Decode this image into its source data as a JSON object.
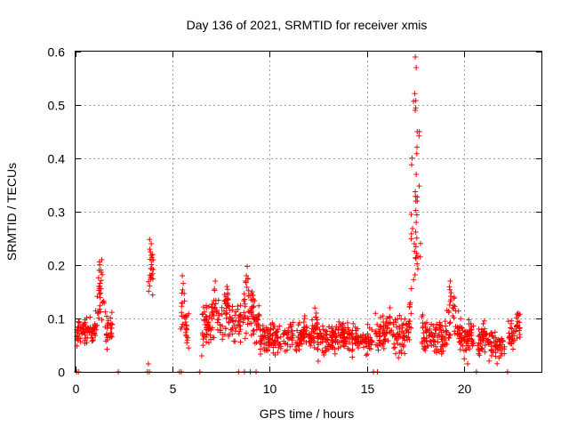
{
  "chart_data": {
    "type": "scatter",
    "title": "Day 136 of 2021, SRMTID for receiver xmis",
    "xlabel": "GPS time / hours",
    "ylabel": "SRMTID / TECUs",
    "xlim": [
      0,
      24
    ],
    "ylim": [
      0,
      0.6
    ],
    "xticks": [
      0,
      5,
      10,
      15,
      20
    ],
    "yticks": [
      0,
      0.1,
      0.2,
      0.3,
      0.4,
      0.5,
      0.6
    ],
    "xtick_labels": [
      "0",
      "5",
      "10",
      "15",
      "20"
    ],
    "ytick_labels": [
      "0",
      "0.1",
      "0.2",
      "0.3",
      "0.4",
      "0.5",
      "0.6"
    ],
    "grid": true,
    "marker": "+",
    "series": [
      {
        "name": "SRMTID",
        "color": "#ff0000",
        "segments": [
          {
            "start": 0.05,
            "end": 1.9,
            "base": 0.075,
            "spread": 0.025,
            "peaks": [
              [
                1.35,
                0.21
              ],
              [
                1.2,
                0.16
              ]
            ]
          },
          {
            "start": 3.75,
            "end": 4.05,
            "base": 0.17,
            "spread": 0.03,
            "peaks": [
              [
                3.9,
                0.24
              ]
            ]
          },
          {
            "start": 5.4,
            "end": 5.85,
            "base": 0.07,
            "spread": 0.03,
            "peaks": [
              [
                5.5,
                0.18
              ]
            ]
          },
          {
            "start": 6.5,
            "end": 9.5,
            "base": 0.09,
            "spread": 0.03,
            "peaks": [
              [
                7.2,
                0.17
              ],
              [
                7.8,
                0.16
              ],
              [
                8.8,
                0.18
              ],
              [
                9.1,
                0.15
              ]
            ]
          },
          {
            "start": 9.5,
            "end": 15.3,
            "base": 0.06,
            "spread": 0.02,
            "peaks": [
              [
                11.8,
                0.1
              ],
              [
                12.4,
                0.11
              ],
              [
                13.8,
                0.08
              ]
            ]
          },
          {
            "start": 15.4,
            "end": 17.2,
            "base": 0.07,
            "spread": 0.025,
            "peaks": [
              [
                16.2,
                0.12
              ]
            ]
          },
          {
            "start": 17.2,
            "end": 17.9,
            "base": 0.1,
            "spread": 0.04,
            "peaks": [
              [
                17.5,
                0.59
              ],
              [
                17.55,
                0.57
              ],
              [
                17.5,
                0.49
              ],
              [
                17.6,
                0.45
              ],
              [
                17.55,
                0.37
              ],
              [
                17.6,
                0.32
              ],
              [
                17.55,
                0.28
              ],
              [
                17.45,
                0.24
              ]
            ]
          },
          {
            "start": 17.9,
            "end": 20.5,
            "base": 0.065,
            "spread": 0.025,
            "peaks": [
              [
                19.3,
                0.17
              ],
              [
                19.5,
                0.14
              ]
            ]
          },
          {
            "start": 20.7,
            "end": 22.1,
            "base": 0.05,
            "spread": 0.02,
            "peaks": [
              [
                21.0,
                0.09
              ]
            ]
          },
          {
            "start": 22.3,
            "end": 22.9,
            "base": 0.07,
            "spread": 0.02,
            "peaks": [
              [
                22.8,
                0.11
              ]
            ]
          }
        ],
        "zero_points": [
          0.05,
          0.15,
          2.2,
          3.7,
          3.8,
          5.35,
          5.45,
          6.4,
          8.4,
          8.7,
          9.0,
          9.3,
          15.35,
          15.55,
          20.65,
          22.25
        ],
        "outliers": [
          [
            3.75,
            0.015
          ],
          [
            6.5,
            0.03
          ],
          [
            12.5,
            0.02
          ],
          [
            20.2,
            0.015
          ]
        ]
      }
    ]
  }
}
